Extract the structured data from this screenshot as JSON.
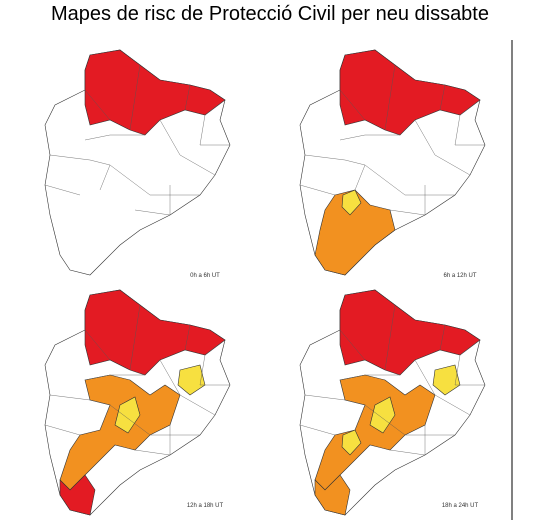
{
  "title": "Mapes de risc de Protecció Civil per neu dissabte",
  "panels": [
    {
      "label": "0h a 6h UT"
    },
    {
      "label": "6h a 12h UT"
    },
    {
      "label": "12h a 18h UT"
    },
    {
      "label": "18h a 24h UT"
    }
  ]
}
